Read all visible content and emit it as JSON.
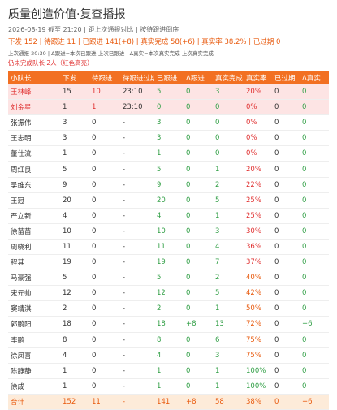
{
  "header": {
    "title": "质量创造价值·复查播报",
    "meta": "2026-08-19 截至 21:20 | 距上次通报对比 | 按待跟进倒序",
    "stats": "下发 152 | 待跟进 11 | 已跟进 141(+8) | 真实完成 58(+6) | 真实率 38.2% | 已过期 0",
    "note": "上次通报 20:30 | Δ跟进=本次已跟进-上次已跟进 | Δ真实=本次真实完成-上次真实完成",
    "alert": "仍未完成队长 2人（红色高亮）"
  },
  "table": {
    "columns": [
      "小队长",
      "下发",
      "待跟进",
      "待跟进过期",
      "已跟进",
      "Δ跟进",
      "真实完成",
      "真实率",
      "已过期",
      "Δ真实"
    ],
    "rows": [
      [
        "王林峰",
        "15",
        "10",
        "23:10",
        "5",
        "0",
        "3",
        "20%",
        "0",
        "0"
      ],
      [
        "刘金星",
        "1",
        "1",
        "23:10",
        "0",
        "0",
        "0",
        "0%",
        "0",
        "0"
      ],
      [
        "张振伟",
        "3",
        "0",
        "-",
        "3",
        "0",
        "0",
        "0%",
        "0",
        "0"
      ],
      [
        "王志明",
        "3",
        "0",
        "-",
        "3",
        "0",
        "0",
        "0%",
        "0",
        "0"
      ],
      [
        "董仕流",
        "1",
        "0",
        "-",
        "1",
        "0",
        "0",
        "0%",
        "0",
        "0"
      ],
      [
        "周红良",
        "5",
        "0",
        "-",
        "5",
        "0",
        "1",
        "20%",
        "0",
        "0"
      ],
      [
        "吴维东",
        "9",
        "0",
        "-",
        "9",
        "0",
        "2",
        "22%",
        "0",
        "0"
      ],
      [
        "王冠",
        "20",
        "0",
        "-",
        "20",
        "0",
        "5",
        "25%",
        "0",
        "0"
      ],
      [
        "严立新",
        "4",
        "0",
        "-",
        "4",
        "0",
        "1",
        "25%",
        "0",
        "0"
      ],
      [
        "徐苗苗",
        "10",
        "0",
        "-",
        "10",
        "0",
        "3",
        "30%",
        "0",
        "0"
      ],
      [
        "周晓利",
        "11",
        "0",
        "-",
        "11",
        "0",
        "4",
        "36%",
        "0",
        "0"
      ],
      [
        "程其",
        "19",
        "0",
        "-",
        "19",
        "0",
        "7",
        "37%",
        "0",
        "0"
      ],
      [
        "马豪强",
        "5",
        "0",
        "-",
        "5",
        "0",
        "2",
        "40%",
        "0",
        "0"
      ],
      [
        "宋元帅",
        "12",
        "0",
        "-",
        "12",
        "0",
        "5",
        "42%",
        "0",
        "0"
      ],
      [
        "窦靖淇",
        "2",
        "0",
        "-",
        "2",
        "0",
        "1",
        "50%",
        "0",
        "0"
      ],
      [
        "郭鹏阳",
        "18",
        "0",
        "-",
        "18",
        "+8",
        "13",
        "72%",
        "0",
        "+6"
      ],
      [
        "李鹏",
        "8",
        "0",
        "-",
        "8",
        "0",
        "6",
        "75%",
        "0",
        "0"
      ],
      [
        "徐凤喜",
        "4",
        "0",
        "-",
        "4",
        "0",
        "3",
        "75%",
        "0",
        "0"
      ],
      [
        "陈静静",
        "1",
        "0",
        "-",
        "1",
        "0",
        "1",
        "100%",
        "0",
        "0"
      ],
      [
        "徐成",
        "1",
        "0",
        "-",
        "1",
        "0",
        "1",
        "100%",
        "0",
        "0"
      ]
    ],
    "total": [
      "合计",
      "152",
      "11",
      "-",
      "141",
      "+8",
      "58",
      "38%",
      "0",
      "+6"
    ]
  }
}
